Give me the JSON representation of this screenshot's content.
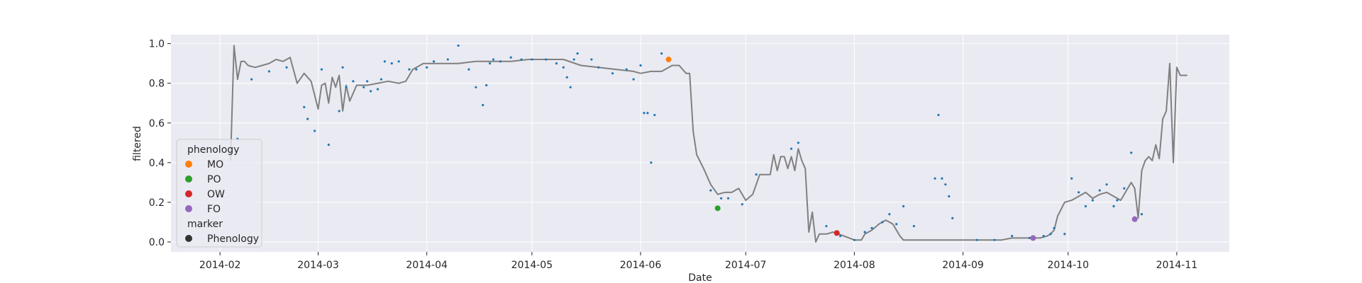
{
  "chart_data": {
    "type": "line",
    "xlabel": "Date",
    "ylabel": "filtered",
    "xlim": [
      "2014-01-18",
      "2014-11-16"
    ],
    "ylim": [
      -0.05,
      1.045
    ],
    "grid": true,
    "x_ticks": [
      "2014-02-01",
      "2014-03-01",
      "2014-04-01",
      "2014-05-01",
      "2014-06-01",
      "2014-07-01",
      "2014-08-01",
      "2014-09-01",
      "2014-10-01",
      "2014-11-01"
    ],
    "x_tick_labels": [
      "2014-02",
      "2014-03",
      "2014-04",
      "2014-05",
      "2014-06",
      "2014-07",
      "2014-08",
      "2014-09",
      "2014-10",
      "2014-11"
    ],
    "y_ticks": [
      0.0,
      0.2,
      0.4,
      0.6,
      0.8,
      1.0
    ],
    "y_tick_labels": [
      "0.0",
      "0.2",
      "0.4",
      "0.6",
      "0.8",
      "1.0"
    ],
    "line_color": "#808080",
    "scatter_color": "#1f77b4",
    "line": {
      "x": [
        "2014-02-04",
        "2014-02-05",
        "2014-02-06",
        "2014-02-07",
        "2014-02-08",
        "2014-02-09",
        "2014-02-11",
        "2014-02-13",
        "2014-02-15",
        "2014-02-17",
        "2014-02-19",
        "2014-02-21",
        "2014-02-23",
        "2014-02-25",
        "2014-02-26",
        "2014-02-27",
        "2014-03-01",
        "2014-03-02",
        "2014-03-03",
        "2014-03-04",
        "2014-03-05",
        "2014-03-06",
        "2014-03-07",
        "2014-03-08",
        "2014-03-09",
        "2014-03-10",
        "2014-03-12",
        "2014-03-15",
        "2014-03-18",
        "2014-03-21",
        "2014-03-24",
        "2014-03-26",
        "2014-03-28",
        "2014-03-31",
        "2014-04-05",
        "2014-04-10",
        "2014-04-15",
        "2014-04-20",
        "2014-04-25",
        "2014-04-30",
        "2014-05-05",
        "2014-05-10",
        "2014-05-15",
        "2014-05-20",
        "2014-05-25",
        "2014-05-30",
        "2014-06-01",
        "2014-06-04",
        "2014-06-07",
        "2014-06-10",
        "2014-06-12",
        "2014-06-13",
        "2014-06-14",
        "2014-06-15",
        "2014-06-16",
        "2014-06-17",
        "2014-06-19",
        "2014-06-21",
        "2014-06-23",
        "2014-06-25",
        "2014-06-27",
        "2014-06-29",
        "2014-07-01",
        "2014-07-03",
        "2014-07-05",
        "2014-07-08",
        "2014-07-09",
        "2014-07-10",
        "2014-07-11",
        "2014-07-12",
        "2014-07-13",
        "2014-07-14",
        "2014-07-15",
        "2014-07-16",
        "2014-07-17",
        "2014-07-18",
        "2014-07-19",
        "2014-07-20",
        "2014-07-21",
        "2014-07-22",
        "2014-07-23",
        "2014-07-24",
        "2014-07-26",
        "2014-07-29",
        "2014-08-01",
        "2014-08-03",
        "2014-08-04",
        "2014-08-06",
        "2014-08-08",
        "2014-08-10",
        "2014-08-12",
        "2014-08-14",
        "2014-08-15",
        "2014-08-17",
        "2014-08-19",
        "2014-08-22",
        "2014-08-25",
        "2014-08-28",
        "2014-08-31",
        "2014-09-03",
        "2014-09-06",
        "2014-09-09",
        "2014-09-12",
        "2014-09-15",
        "2014-09-18",
        "2014-09-21",
        "2014-09-23",
        "2014-09-25",
        "2014-09-26",
        "2014-09-27",
        "2014-09-28",
        "2014-09-30",
        "2014-10-02",
        "2014-10-04",
        "2014-10-06",
        "2014-10-08",
        "2014-10-10",
        "2014-10-12",
        "2014-10-14",
        "2014-10-16",
        "2014-10-17",
        "2014-10-18",
        "2014-10-19",
        "2014-10-20",
        "2014-10-21",
        "2014-10-22",
        "2014-10-23",
        "2014-10-24",
        "2014-10-25",
        "2014-10-26",
        "2014-10-27",
        "2014-10-28",
        "2014-10-29",
        "2014-10-30",
        "2014-10-31",
        "2014-11-01",
        "2014-11-02",
        "2014-11-04"
      ],
      "y": [
        0.41,
        0.99,
        0.82,
        0.91,
        0.91,
        0.89,
        0.88,
        0.89,
        0.9,
        0.92,
        0.91,
        0.93,
        0.8,
        0.85,
        0.83,
        0.81,
        0.67,
        0.79,
        0.8,
        0.7,
        0.83,
        0.78,
        0.84,
        0.66,
        0.79,
        0.71,
        0.79,
        0.79,
        0.8,
        0.81,
        0.8,
        0.81,
        0.87,
        0.9,
        0.9,
        0.9,
        0.91,
        0.91,
        0.91,
        0.92,
        0.92,
        0.92,
        0.89,
        0.88,
        0.87,
        0.86,
        0.85,
        0.86,
        0.86,
        0.89,
        0.89,
        0.87,
        0.85,
        0.85,
        0.56,
        0.44,
        0.37,
        0.29,
        0.24,
        0.25,
        0.25,
        0.27,
        0.21,
        0.24,
        0.34,
        0.34,
        0.44,
        0.36,
        0.43,
        0.43,
        0.37,
        0.43,
        0.36,
        0.47,
        0.41,
        0.37,
        0.05,
        0.15,
        0.0,
        0.04,
        0.04,
        0.04,
        0.05,
        0.03,
        0.01,
        0.01,
        0.04,
        0.06,
        0.09,
        0.11,
        0.09,
        0.03,
        0.01,
        0.01,
        0.01,
        0.01,
        0.01,
        0.01,
        0.01,
        0.01,
        0.01,
        0.01,
        0.01,
        0.02,
        0.02,
        0.02,
        0.02,
        0.03,
        0.04,
        0.06,
        0.13,
        0.2,
        0.21,
        0.23,
        0.25,
        0.22,
        0.24,
        0.25,
        0.23,
        0.21,
        0.24,
        0.27,
        0.3,
        0.27,
        0.12,
        0.36,
        0.41,
        0.43,
        0.41,
        0.49,
        0.42,
        0.62,
        0.66,
        0.9,
        0.4,
        0.88,
        0.84,
        0.84
      ]
    },
    "points": {
      "x": [
        "2014-02-06",
        "2014-02-10",
        "2014-02-15",
        "2014-02-20",
        "2014-02-25",
        "2014-02-26",
        "2014-02-28",
        "2014-03-02",
        "2014-03-04",
        "2014-03-07",
        "2014-03-08",
        "2014-03-09",
        "2014-03-11",
        "2014-03-14",
        "2014-03-15",
        "2014-03-16",
        "2014-03-18",
        "2014-03-19",
        "2014-03-20",
        "2014-03-22",
        "2014-03-24",
        "2014-03-27",
        "2014-03-29",
        "2014-04-01",
        "2014-04-03",
        "2014-04-07",
        "2014-04-10",
        "2014-04-13",
        "2014-04-15",
        "2014-04-17",
        "2014-04-18",
        "2014-04-19",
        "2014-04-20",
        "2014-04-22",
        "2014-04-25",
        "2014-04-28",
        "2014-05-01",
        "2014-05-05",
        "2014-05-08",
        "2014-05-10",
        "2014-05-11",
        "2014-05-12",
        "2014-05-13",
        "2014-05-14",
        "2014-05-18",
        "2014-05-20",
        "2014-05-24",
        "2014-05-28",
        "2014-05-30",
        "2014-06-01",
        "2014-06-02",
        "2014-06-03",
        "2014-06-04",
        "2014-06-05",
        "2014-06-07",
        "2014-06-21",
        "2014-06-24",
        "2014-06-26",
        "2014-06-30",
        "2014-07-04",
        "2014-07-14",
        "2014-07-16",
        "2014-07-24",
        "2014-07-28",
        "2014-08-01",
        "2014-08-04",
        "2014-08-06",
        "2014-08-09",
        "2014-08-11",
        "2014-08-13",
        "2014-08-15",
        "2014-08-18",
        "2014-08-24",
        "2014-08-25",
        "2014-08-26",
        "2014-08-27",
        "2014-08-28",
        "2014-08-29",
        "2014-09-05",
        "2014-09-10",
        "2014-09-15",
        "2014-09-20",
        "2014-09-24",
        "2014-09-26",
        "2014-09-27",
        "2014-09-30",
        "2014-10-02",
        "2014-10-04",
        "2014-10-06",
        "2014-10-08",
        "2014-10-10",
        "2014-10-12",
        "2014-10-14",
        "2014-10-15",
        "2014-10-17",
        "2014-10-19",
        "2014-10-22"
      ],
      "y": [
        0.52,
        0.82,
        0.86,
        0.88,
        0.68,
        0.62,
        0.56,
        0.87,
        0.49,
        0.66,
        0.88,
        0.78,
        0.81,
        0.78,
        0.81,
        0.76,
        0.77,
        0.82,
        0.91,
        0.9,
        0.91,
        0.87,
        0.87,
        0.88,
        0.91,
        0.92,
        0.99,
        0.87,
        0.78,
        0.69,
        0.79,
        0.9,
        0.92,
        0.91,
        0.93,
        0.92,
        0.92,
        0.92,
        0.9,
        0.88,
        0.83,
        0.78,
        0.92,
        0.95,
        0.92,
        0.88,
        0.85,
        0.87,
        0.82,
        0.89,
        0.65,
        0.65,
        0.4,
        0.64,
        0.95,
        0.26,
        0.22,
        0.22,
        0.19,
        0.34,
        0.47,
        0.5,
        0.08,
        0.03,
        0.01,
        0.05,
        0.07,
        0.1,
        0.14,
        0.09,
        0.18,
        0.08,
        0.32,
        0.64,
        0.32,
        0.29,
        0.23,
        0.12,
        0.01,
        0.01,
        0.03,
        0.02,
        0.03,
        0.04,
        0.07,
        0.04,
        0.32,
        0.25,
        0.18,
        0.21,
        0.26,
        0.29,
        0.18,
        0.21,
        0.27,
        0.45,
        0.14
      ]
    },
    "phenology_points": [
      {
        "name": "MO",
        "x": "2014-06-09",
        "y": 0.92,
        "color": "#ff7f0e"
      },
      {
        "name": "PO",
        "x": "2014-06-23",
        "y": 0.17,
        "color": "#2ca02c"
      },
      {
        "name": "OW",
        "x": "2014-07-27",
        "y": 0.045,
        "color": "#d62728"
      },
      {
        "name": "FO",
        "x": "2014-09-21",
        "y": 0.02,
        "color": "#9467bd"
      },
      {
        "name": "FO",
        "x": "2014-10-20",
        "y": 0.115,
        "color": "#9467bd"
      }
    ],
    "legend": {
      "placement": "lower-left",
      "title": "phenology",
      "entries": [
        {
          "name": "MO",
          "color": "#ff7f0e"
        },
        {
          "name": "PO",
          "color": "#2ca02c"
        },
        {
          "name": "OW",
          "color": "#d62728"
        },
        {
          "name": "FO",
          "color": "#9467bd"
        }
      ],
      "marker_title": "marker",
      "marker_entry": {
        "name": "Phenology",
        "color": "#333333"
      }
    }
  }
}
